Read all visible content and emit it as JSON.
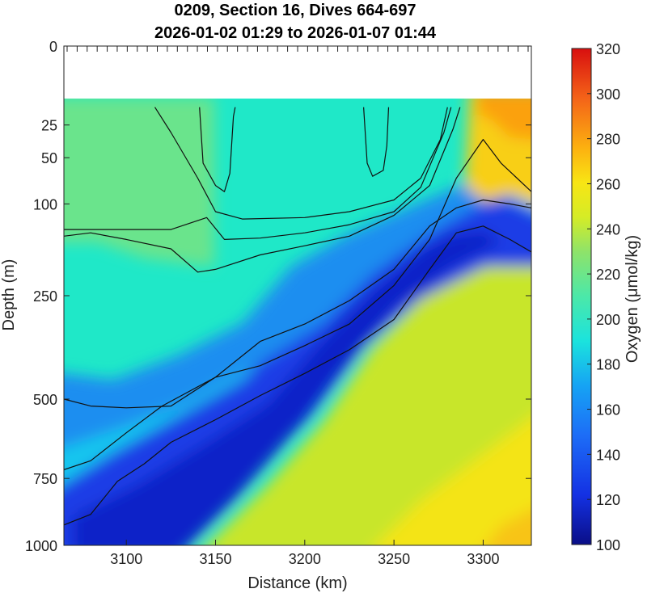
{
  "chart_data": {
    "type": "heatmap",
    "title": [
      "0209, Section 16, Dives 664-697",
      "2026-01-02 01:29 to 2026-01-07 01:44"
    ],
    "xlabel": "Distance (km)",
    "ylabel": "Depth (m)",
    "colorbar_label": "Oxygen (μmol/kg)",
    "colormap": "parula",
    "xlim": [
      3065,
      3327
    ],
    "ylim": [
      0,
      1000
    ],
    "y_scale": "sqrt",
    "x_ticks": [
      3100,
      3150,
      3200,
      3250,
      3300
    ],
    "y_ticks": [
      0,
      25,
      50,
      100,
      250,
      500,
      750,
      1000
    ],
    "c_ticks": [
      100,
      120,
      140,
      160,
      180,
      200,
      220,
      240,
      260,
      280,
      300,
      320
    ],
    "clim": [
      100,
      320
    ],
    "data_top_depth": 15,
    "grid": false,
    "field_description": [
      {
        "region": "surface layer, x 3065–3290, depth 15–100",
        "oxygen": 195
      },
      {
        "region": "surface layer, x 3065–3150, depth 15–250",
        "oxygen": 205
      },
      {
        "region": "surface layer, x 3290–3327, depth 15–100",
        "oxygen": 262
      },
      {
        "region": "oxygen minimum core, diagonal from (3065, 900) to (3300, 150)",
        "oxygen": 130
      },
      {
        "region": "deep water below core, x 3200–3327, depth 500–1000",
        "oxygen": 228
      },
      {
        "region": "deep corner, x 3290–3327, depth 750–1000",
        "oxygen": 248
      }
    ],
    "contours": [
      {
        "name": "c1",
        "points": [
          [
            3065,
            920
          ],
          [
            3080,
            880
          ],
          [
            3095,
            760
          ],
          [
            3110,
            700
          ],
          [
            3125,
            630
          ],
          [
            3150,
            560
          ],
          [
            3175,
            490
          ],
          [
            3200,
            430
          ],
          [
            3225,
            370
          ],
          [
            3250,
            300
          ],
          [
            3270,
            200
          ],
          [
            3285,
            140
          ],
          [
            3300,
            130
          ],
          [
            3315,
            150
          ],
          [
            3327,
            170
          ]
        ]
      },
      {
        "name": "c2",
        "points": [
          [
            3065,
            720
          ],
          [
            3080,
            690
          ],
          [
            3100,
            600
          ],
          [
            3120,
            520
          ],
          [
            3150,
            440
          ],
          [
            3175,
            350
          ],
          [
            3200,
            310
          ],
          [
            3225,
            260
          ],
          [
            3250,
            200
          ],
          [
            3270,
            130
          ],
          [
            3285,
            105
          ],
          [
            3300,
            95
          ],
          [
            3315,
            100
          ],
          [
            3327,
            105
          ]
        ]
      },
      {
        "name": "c3",
        "points": [
          [
            3065,
            500
          ],
          [
            3080,
            520
          ],
          [
            3100,
            525
          ],
          [
            3125,
            520
          ],
          [
            3150,
            440
          ],
          [
            3175,
            410
          ],
          [
            3200,
            360
          ],
          [
            3225,
            310
          ],
          [
            3250,
            230
          ],
          [
            3270,
            150
          ],
          [
            3285,
            70
          ],
          [
            3300,
            35
          ],
          [
            3310,
            55
          ],
          [
            3327,
            85
          ]
        ]
      },
      {
        "name": "c4",
        "points": [
          [
            3065,
            145
          ],
          [
            3080,
            140
          ],
          [
            3100,
            150
          ],
          [
            3125,
            165
          ],
          [
            3140,
            205
          ],
          [
            3150,
            200
          ],
          [
            3175,
            175
          ],
          [
            3200,
            160
          ],
          [
            3225,
            145
          ],
          [
            3250,
            115
          ],
          [
            3270,
            78
          ],
          [
            3283,
            28
          ],
          [
            3287,
            15
          ]
        ]
      },
      {
        "name": "c5",
        "points": [
          [
            3065,
            135
          ],
          [
            3125,
            135
          ],
          [
            3145,
            118
          ],
          [
            3155,
            150
          ],
          [
            3175,
            148
          ],
          [
            3200,
            140
          ],
          [
            3225,
            128
          ],
          [
            3250,
            110
          ],
          [
            3265,
            80
          ],
          [
            3278,
            30
          ],
          [
            3282,
            15
          ]
        ]
      },
      {
        "name": "c6",
        "points": [
          [
            3116,
            15
          ],
          [
            3125,
            30
          ],
          [
            3140,
            70
          ],
          [
            3150,
            110
          ],
          [
            3165,
            120
          ],
          [
            3200,
            118
          ],
          [
            3225,
            110
          ],
          [
            3250,
            95
          ],
          [
            3265,
            70
          ],
          [
            3276,
            35
          ],
          [
            3280,
            15
          ]
        ]
      },
      {
        "name": "c7",
        "points": [
          [
            3141,
            15
          ],
          [
            3143,
            55
          ],
          [
            3150,
            78
          ],
          [
            3155,
            85
          ],
          [
            3158,
            65
          ],
          [
            3160,
            20
          ],
          [
            3161,
            15
          ]
        ]
      },
      {
        "name": "c8",
        "points": [
          [
            3233,
            15
          ],
          [
            3235,
            55
          ],
          [
            3238,
            68
          ],
          [
            3244,
            62
          ],
          [
            3246,
            40
          ],
          [
            3247,
            15
          ]
        ]
      }
    ]
  }
}
